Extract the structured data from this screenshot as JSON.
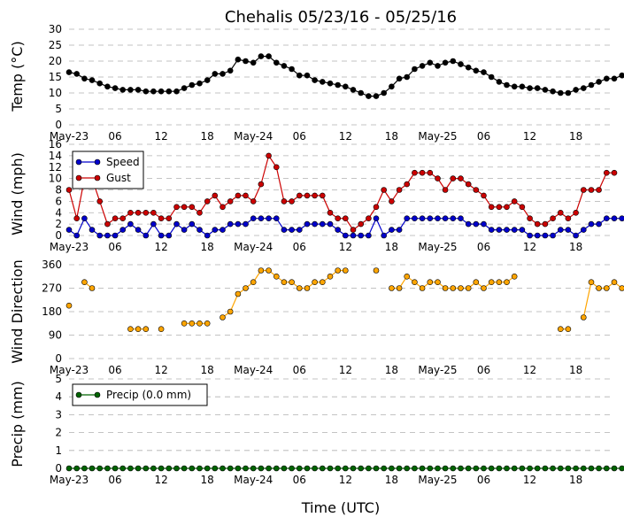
{
  "chart_data": [
    {
      "type": "line",
      "title": "Chehalis 05/23/16 - 05/25/16",
      "ylabel": "Temp ($^\\circ$C)",
      "ylabel_text": "Temp (°C)",
      "ylim": [
        0,
        30
      ],
      "yticks": [
        0,
        5,
        10,
        15,
        20,
        25,
        30
      ],
      "grid": true,
      "series": [
        {
          "color": "#000000",
          "values": [
            16.5,
            16,
            14.5,
            14,
            13,
            12,
            11.5,
            11,
            11,
            11,
            10.5,
            10.5,
            10.5,
            10.5,
            10.5,
            11.5,
            12.5,
            13,
            14,
            16,
            16,
            17,
            20.5,
            20,
            19.5,
            21.5,
            21.5,
            19.5,
            18.5,
            17.5,
            15.5,
            15.5,
            14,
            13.5,
            13,
            12.5,
            12,
            11,
            10,
            9,
            9,
            10,
            12,
            14.5,
            15,
            17.5,
            18.5,
            19.5,
            18.5,
            19.5,
            20,
            19,
            18,
            17,
            16.5,
            15,
            13.5,
            12.5,
            12,
            12,
            11.5,
            11.5,
            11,
            10.5,
            10,
            10,
            11,
            11.5,
            12.5,
            13.5,
            14.5,
            14.5,
            15.5,
            16,
            16.5,
            16
          ]
        }
      ]
    },
    {
      "type": "line",
      "ylabel": "Wind (mph)",
      "ylim": [
        0,
        16
      ],
      "yticks": [
        0,
        2,
        4,
        6,
        8,
        10,
        12,
        14,
        16
      ],
      "grid": true,
      "legend_position": "upper-left",
      "series": [
        {
          "name": "Speed",
          "color": "#0000cc",
          "values": [
            1,
            0,
            3,
            1,
            0,
            0,
            0,
            1,
            2,
            1,
            0,
            2,
            0,
            0,
            2,
            1,
            2,
            1,
            0,
            1,
            1,
            2,
            2,
            2,
            3,
            3,
            3,
            3,
            1,
            1,
            1,
            2,
            2,
            2,
            2,
            1,
            0,
            0,
            0,
            0,
            3,
            0,
            1,
            1,
            3,
            3,
            3,
            3,
            3,
            3,
            3,
            3,
            2,
            2,
            2,
            1,
            1,
            1,
            1,
            1,
            0,
            0,
            0,
            0,
            1,
            1,
            0,
            1,
            2,
            2,
            3,
            3,
            3
          ]
        },
        {
          "name": "Gust",
          "color": "#cc0000",
          "values": [
            8,
            3,
            10,
            10,
            6,
            2,
            3,
            3,
            4,
            4,
            4,
            4,
            3,
            3,
            5,
            5,
            5,
            4,
            6,
            7,
            5,
            6,
            7,
            7,
            6,
            9,
            14,
            12,
            6,
            6,
            7,
            7,
            7,
            7,
            4,
            3,
            3,
            1,
            2,
            3,
            5,
            8,
            6,
            8,
            9,
            11,
            11,
            11,
            10,
            8,
            10,
            10,
            9,
            8,
            7,
            5,
            5,
            5,
            6,
            5,
            3,
            2,
            2,
            3,
            4,
            3,
            4,
            8,
            8,
            8,
            11,
            11
          ]
        }
      ]
    },
    {
      "type": "scatter",
      "ylabel": "Wind Direction",
      "ylim": [
        0,
        360
      ],
      "yticks": [
        0,
        90,
        180,
        270,
        360
      ],
      "grid": true,
      "series": [
        {
          "color": "#ffa500",
          "segments": [
            [
              [
                0,
                203
              ]
            ],
            [
              [
                2,
                293
              ],
              [
                3,
                270
              ]
            ],
            [
              [
                8,
                113
              ],
              [
                9,
                113
              ],
              [
                10,
                113
              ]
            ],
            [
              [
                12,
                113
              ]
            ],
            [
              [
                15,
                135
              ],
              [
                16,
                135
              ],
              [
                17,
                135
              ],
              [
                18,
                135
              ]
            ],
            [
              [
                20,
                158
              ],
              [
                21,
                180
              ],
              [
                22,
                248
              ],
              [
                23,
                270
              ],
              [
                24,
                293
              ],
              [
                25,
                338
              ],
              [
                26,
                338
              ],
              [
                27,
                315
              ],
              [
                28,
                293
              ],
              [
                29,
                293
              ],
              [
                30,
                270
              ],
              [
                31,
                270
              ],
              [
                32,
                293
              ],
              [
                33,
                293
              ],
              [
                34,
                315
              ],
              [
                35,
                338
              ],
              [
                36,
                338
              ]
            ],
            [
              [
                40,
                338
              ]
            ],
            [
              [
                42,
                270
              ],
              [
                43,
                270
              ],
              [
                44,
                315
              ],
              [
                45,
                293
              ],
              [
                46,
                270
              ],
              [
                47,
                293
              ],
              [
                48,
                293
              ],
              [
                49,
                270
              ],
              [
                50,
                270
              ],
              [
                51,
                270
              ],
              [
                52,
                270
              ],
              [
                53,
                293
              ],
              [
                54,
                270
              ],
              [
                55,
                293
              ],
              [
                56,
                293
              ],
              [
                57,
                293
              ],
              [
                58,
                315
              ]
            ],
            [
              [
                64,
                113
              ],
              [
                65,
                113
              ]
            ],
            [
              [
                67,
                158
              ],
              [
                68,
                293
              ],
              [
                69,
                270
              ],
              [
                70,
                270
              ],
              [
                71,
                293
              ],
              [
                72,
                270
              ]
            ]
          ]
        }
      ]
    },
    {
      "type": "line",
      "ylabel": "Precip (mm)",
      "xlabel": "Time (UTC)",
      "ylim": [
        0,
        5
      ],
      "yticks": [
        0,
        1,
        2,
        3,
        4,
        5
      ],
      "grid": true,
      "legend_position": "upper-left",
      "series": [
        {
          "name": "Precip (0.0 mm)",
          "color": "#006400",
          "values": [
            0,
            0,
            0,
            0,
            0,
            0,
            0,
            0,
            0,
            0,
            0,
            0,
            0,
            0,
            0,
            0,
            0,
            0,
            0,
            0,
            0,
            0,
            0,
            0,
            0,
            0,
            0,
            0,
            0,
            0,
            0,
            0,
            0,
            0,
            0,
            0,
            0,
            0,
            0,
            0,
            0,
            0,
            0,
            0,
            0,
            0,
            0,
            0,
            0,
            0,
            0,
            0,
            0,
            0,
            0,
            0,
            0,
            0,
            0,
            0,
            0,
            0,
            0,
            0,
            0,
            0,
            0,
            0,
            0,
            0,
            0,
            0,
            0
          ]
        }
      ]
    }
  ],
  "x_axis": {
    "tick_labels": [
      "May-23",
      "06",
      "12",
      "18",
      "May-24",
      "06",
      "12",
      "18",
      "May-25",
      "06",
      "12",
      "18"
    ],
    "tick_hours": [
      0,
      6,
      12,
      18,
      24,
      30,
      36,
      42,
      48,
      54,
      60,
      66
    ],
    "range_hours": [
      0,
      71
    ]
  }
}
